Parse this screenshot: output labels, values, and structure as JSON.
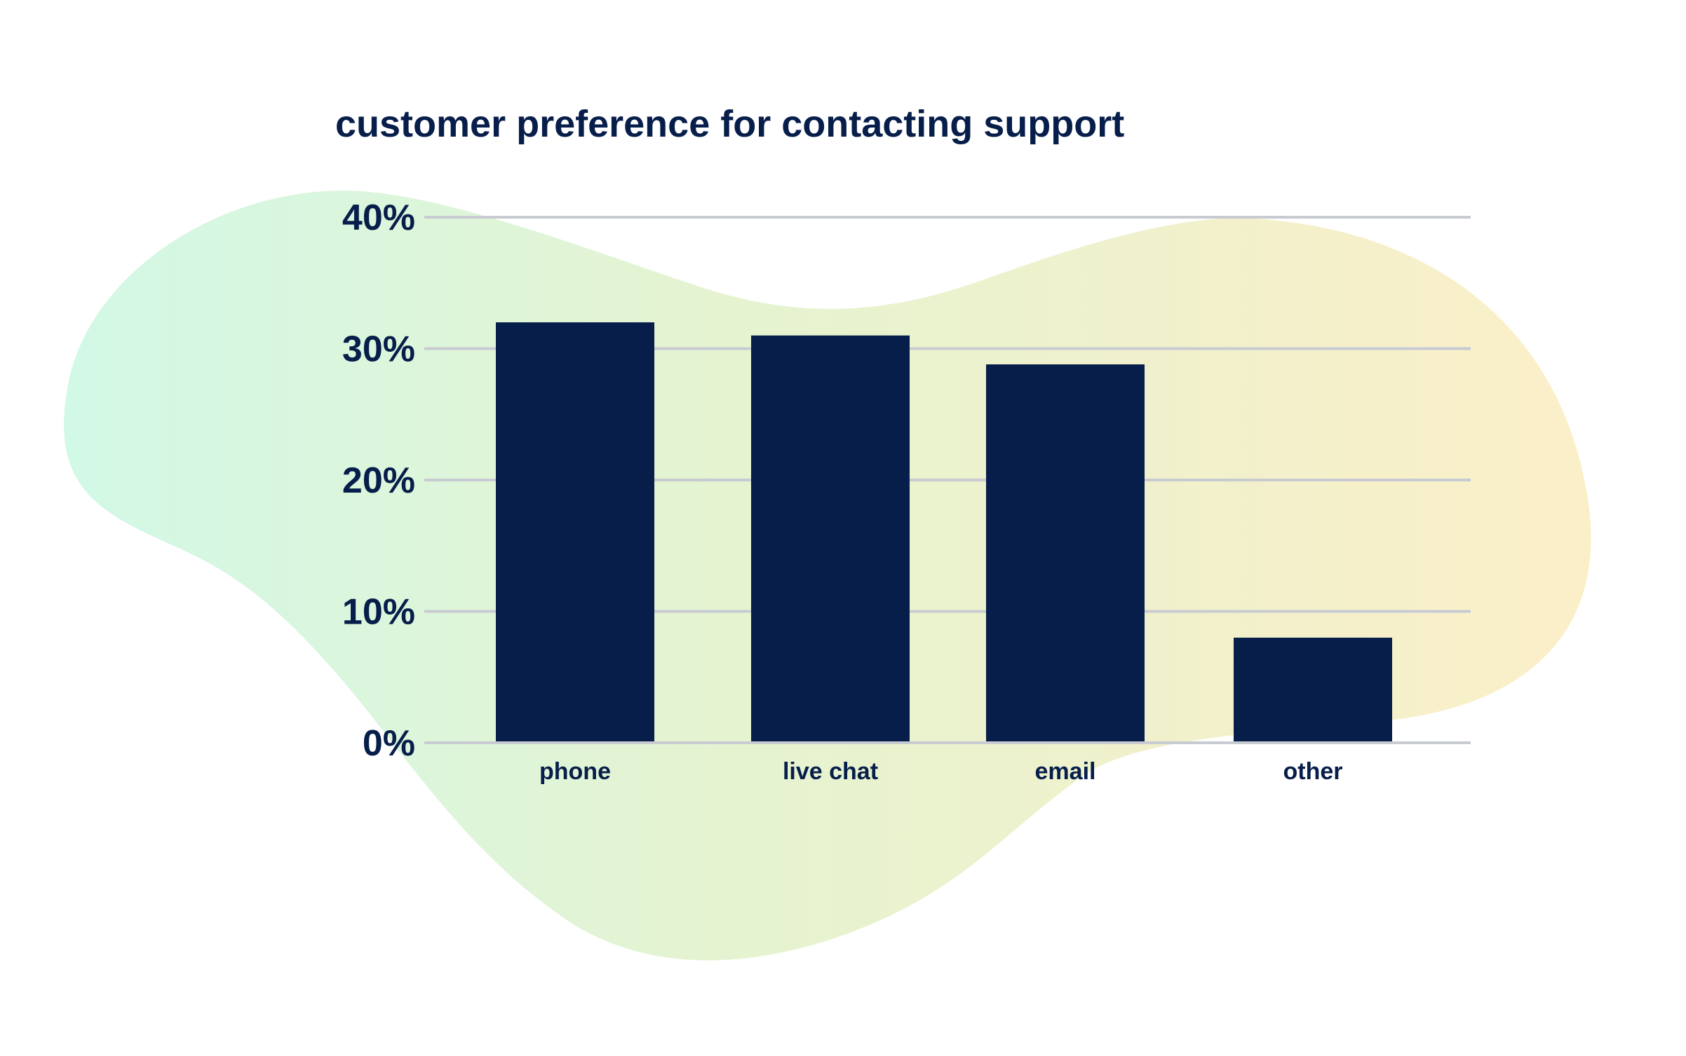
{
  "colors": {
    "background": "#ffffff",
    "bar": "#071e4b",
    "text": "#071e4b",
    "gridline": "#c8cbd2",
    "blob_gradient_start": "#d2f8e6",
    "blob_gradient_mid": "#e6f3d0",
    "blob_gradient_end": "#fbefc8"
  },
  "chart_data": {
    "type": "bar",
    "title": "customer preference for contacting support",
    "xlabel": "",
    "ylabel": "",
    "categories": [
      "phone",
      "live chat",
      "email",
      "other"
    ],
    "values": [
      32,
      31,
      28.8,
      8
    ],
    "ylim": [
      0,
      40
    ],
    "yticks": [
      0,
      10,
      20,
      30,
      40
    ],
    "ytick_labels": [
      "0%",
      "10%",
      "20%",
      "30%",
      "40%"
    ],
    "grid": true,
    "legend": "none"
  }
}
